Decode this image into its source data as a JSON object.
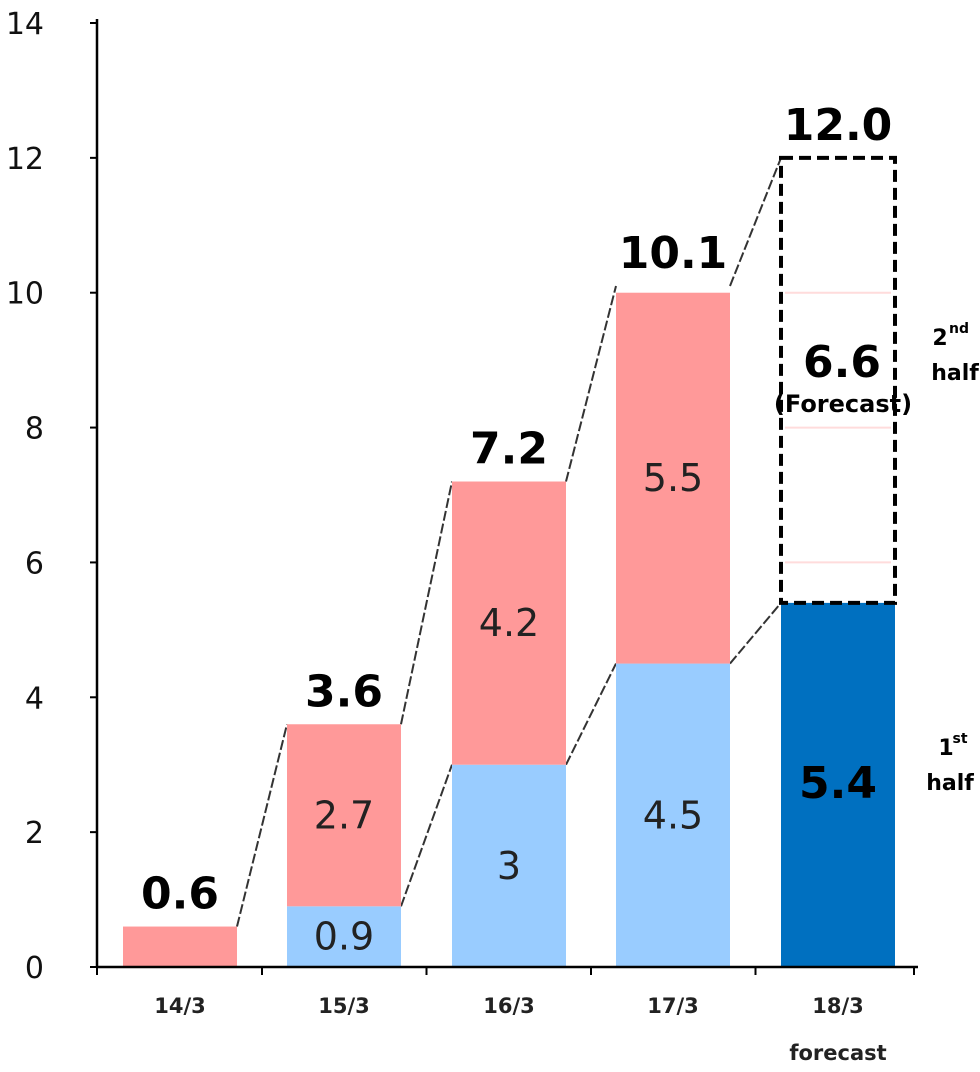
{
  "chart_data": {
    "type": "bar",
    "stacked": true,
    "categories": [
      "14/3",
      "15/3",
      "16/3",
      "17/3",
      "18/3"
    ],
    "category_sublabels": [
      "",
      "",
      "",
      "",
      "forecast"
    ],
    "series": [
      {
        "name": "1st half",
        "values": [
          null,
          0.9,
          3,
          4.5,
          5.4
        ],
        "labels": [
          "",
          "0.9",
          "3",
          "4.5",
          "5.4"
        ]
      },
      {
        "name": "2nd half",
        "values": [
          0.6,
          2.7,
          4.2,
          5.5,
          6.6
        ],
        "labels": [
          "",
          "2.7",
          "4.2",
          "5.5",
          "6.6"
        ]
      }
    ],
    "totals": [
      0.6,
      3.6,
      7.2,
      10.1,
      12.0
    ],
    "total_labels": [
      "0.6",
      "3.6",
      "7.2",
      "10.1",
      "12.0"
    ],
    "forecast_note": "(Forecast)",
    "side_labels": {
      "second_half": {
        "base": "2",
        "sup": "nd",
        "word": "half"
      },
      "first_half": {
        "base": "1",
        "sup": "st",
        "word": "half"
      }
    },
    "y_ticks": [
      "0",
      "2",
      "4",
      "6",
      "8",
      "10",
      "12",
      "14"
    ],
    "ylim": [
      0,
      14
    ],
    "grid": false,
    "colors": {
      "first_half": "#99ccff",
      "second_half": "#ff9999",
      "first_half_forecast": "#0070c0",
      "forecast_value_text": "#ffffff",
      "forecast_gridline": "#ffdcdc",
      "axis": "#000000",
      "connector": "#333333"
    }
  }
}
